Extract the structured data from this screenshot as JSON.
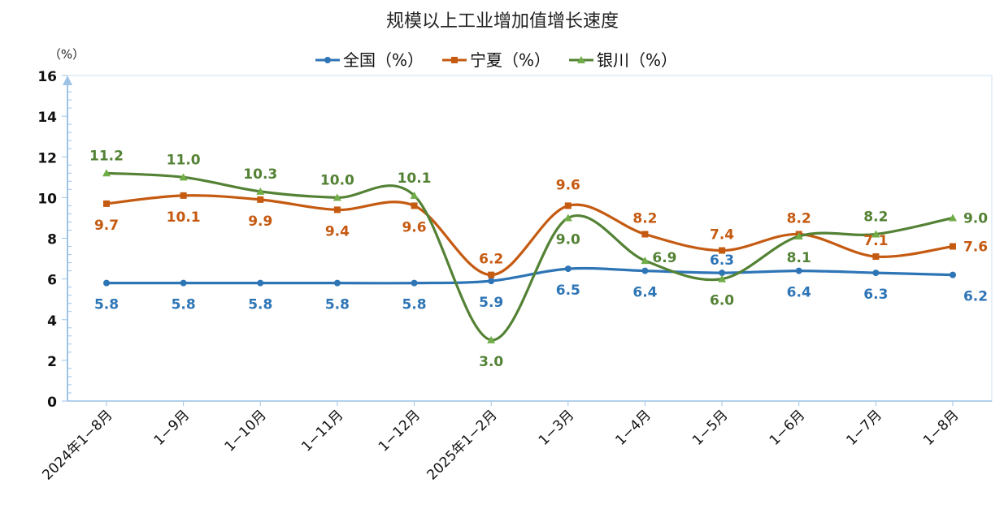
{
  "chart_data": {
    "type": "line",
    "title": "规模以上工业增加值增长速度",
    "ylabel": "（%）",
    "xlabel": "",
    "ylim": [
      0,
      16
    ],
    "yticks": [
      0,
      2,
      4,
      6,
      8,
      10,
      12,
      14,
      16
    ],
    "legend_position": "top-center",
    "categories": [
      "2024年1−8月",
      "1−9月",
      "1−10月",
      "1−11月",
      "1−12月",
      "2025年1−2月",
      "1−3月",
      "1−4月",
      "1−5月",
      "1−6月",
      "1−7月",
      "1−8月"
    ],
    "series": [
      {
        "name": "全国（%）",
        "color": "#2e75b6",
        "marker_color": "#2e75b6",
        "marker": "circle",
        "label_color": "#2e75b6",
        "values": [
          5.8,
          5.8,
          5.8,
          5.8,
          5.8,
          5.9,
          6.5,
          6.4,
          6.3,
          6.4,
          6.3,
          6.2
        ]
      },
      {
        "name": "宁夏（%）",
        "color": "#c55a11",
        "marker_color": "#c55a11",
        "marker": "square",
        "label_color": "#c55a11",
        "values": [
          9.7,
          10.1,
          9.9,
          9.4,
          9.6,
          6.2,
          9.6,
          8.2,
          7.4,
          8.2,
          7.1,
          7.6
        ]
      },
      {
        "name": "银川（%）",
        "color": "#548235",
        "marker_color": "#70ad47",
        "marker": "triangle",
        "label_color": "#548235",
        "values": [
          11.2,
          11.0,
          10.3,
          10.0,
          10.1,
          3.0,
          9.0,
          6.9,
          6.0,
          8.1,
          8.2,
          9.0
        ]
      }
    ]
  }
}
